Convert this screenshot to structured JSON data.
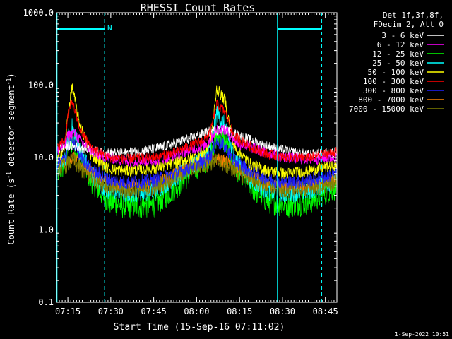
{
  "chart_data": {
    "type": "line",
    "title": "RHESSI Count Rates",
    "xlabel": "Start Time (15-Sep-16 07:11:02)",
    "ylabel_parts": [
      "Count Rate (s",
      "-1",
      " detector segment",
      "-1",
      ")"
    ],
    "yscale": "log",
    "ylim": [
      0.1,
      1000
    ],
    "xlim_minutes": [
      0,
      98
    ],
    "x_ticks": [
      {
        "label": "07:15",
        "min": 3.97
      },
      {
        "label": "07:30",
        "min": 18.97
      },
      {
        "label": "07:45",
        "min": 33.97
      },
      {
        "label": "08:00",
        "min": 48.97
      },
      {
        "label": "08:15",
        "min": 63.97
      },
      {
        "label": "08:30",
        "min": 78.97
      },
      {
        "label": "08:45",
        "min": 93.97
      }
    ],
    "y_ticks": [
      {
        "label": "0.1",
        "value": 0.1
      },
      {
        "label": "1.0",
        "value": 1
      },
      {
        "label": "10.0",
        "value": 10
      },
      {
        "label": "100.0",
        "value": 100
      },
      {
        "label": "1000.0",
        "value": 1000
      }
    ],
    "legend_header": [
      "Det 1f,3f,8f,",
      "FDecim 2, Att 0"
    ],
    "legend_position": "outside-right",
    "series": [
      {
        "name": "3 - 6 keV",
        "color": "#ffffff",
        "knots_x": [
          0,
          4,
          8,
          16,
          24,
          34,
          42,
          48,
          52,
          58,
          64,
          72,
          80,
          88,
          98
        ],
        "knots_y": [
          13,
          14.5,
          14,
          11.5,
          11.5,
          13,
          16,
          19,
          22,
          25,
          20,
          15,
          12.5,
          11,
          12
        ],
        "noise": 0.07
      },
      {
        "name": "6 - 12 keV",
        "color": "#ff00ff",
        "knots_x": [
          0,
          3,
          4,
          6,
          9,
          14,
          24,
          34,
          42,
          48,
          52,
          54,
          56,
          59,
          63,
          72,
          80,
          88,
          98
        ],
        "knots_y": [
          12,
          15,
          20,
          22,
          16,
          11,
          9,
          9,
          11,
          13,
          15,
          18,
          25,
          24,
          16,
          12,
          10,
          9.5,
          10
        ],
        "noise": 0.08
      },
      {
        "name": "12 - 25 keV",
        "color": "#00ff00",
        "knots_x": [
          0,
          3,
          4,
          5.5,
          8,
          12,
          18,
          24,
          34,
          42,
          48,
          52,
          54,
          56,
          59,
          62,
          68,
          74,
          80,
          88,
          98
        ],
        "knots_y": [
          6,
          8,
          14,
          17,
          11,
          5,
          2.5,
          2.1,
          2.2,
          4,
          7,
          9,
          12,
          20,
          16,
          8,
          4,
          2.5,
          2.2,
          2.4,
          4
        ],
        "noise": 0.18
      },
      {
        "name": "25 - 50 keV",
        "color": "#00ffff",
        "knots_x": [
          0,
          3,
          4,
          5.5,
          8,
          12,
          18,
          24,
          34,
          42,
          48,
          52,
          54,
          56,
          59,
          62,
          68,
          74,
          80,
          88,
          98
        ],
        "knots_y": [
          7,
          9,
          18,
          26,
          13,
          6,
          3.5,
          3.2,
          3.5,
          5.5,
          8,
          10,
          14,
          42,
          26,
          10,
          5,
          3.5,
          3.2,
          3.5,
          5
        ],
        "noise": 0.14
      },
      {
        "name": "50 - 100 keV",
        "color": "#ffff00",
        "knots_x": [
          0,
          3,
          4,
          5.5,
          8,
          12,
          18,
          24,
          34,
          42,
          48,
          52,
          54,
          56,
          59,
          62,
          68,
          74,
          80,
          88,
          98
        ],
        "knots_y": [
          9,
          14,
          40,
          95,
          30,
          11,
          7,
          6.5,
          7,
          8.5,
          10,
          12,
          18,
          90,
          60,
          14,
          8,
          6.5,
          6,
          6.5,
          8
        ],
        "noise": 0.08
      },
      {
        "name": "100 - 300 keV",
        "color": "#ff0000",
        "knots_x": [
          0,
          3,
          4,
          5.5,
          8,
          12,
          18,
          24,
          34,
          42,
          48,
          52,
          54,
          56,
          59,
          62,
          68,
          74,
          80,
          88,
          98
        ],
        "knots_y": [
          13,
          18,
          40,
          60,
          25,
          14,
          10,
          9.5,
          10,
          12,
          15,
          18,
          24,
          55,
          42,
          20,
          14,
          11,
          10,
          10,
          12
        ],
        "noise": 0.07
      },
      {
        "name": "300 - 800 keV",
        "color": "#2020ff",
        "knots_x": [
          0,
          3,
          4,
          5.5,
          8,
          12,
          18,
          24,
          34,
          42,
          48,
          52,
          54,
          56,
          59,
          62,
          68,
          74,
          80,
          88,
          98
        ],
        "knots_y": [
          8,
          10,
          14,
          17,
          11,
          7,
          5,
          4.5,
          4.8,
          6,
          8,
          9,
          11,
          17,
          14,
          9,
          6.5,
          5,
          4.5,
          4.8,
          6
        ],
        "noise": 0.1
      },
      {
        "name": "800 - 7000 keV",
        "color": "#ff8000",
        "knots_x": [
          0,
          4,
          6,
          10,
          18,
          24,
          34,
          42,
          48,
          52,
          56,
          60,
          66,
          74,
          80,
          88,
          98
        ],
        "knots_y": [
          8,
          9,
          10,
          7,
          4.5,
          4,
          4.2,
          6,
          8,
          9,
          9.5,
          8.5,
          6,
          4.2,
          3.8,
          4,
          5
        ],
        "noise": 0.09
      },
      {
        "name": "7000 - 15000 keV",
        "color": "#808000",
        "knots_x": [
          0,
          4,
          6,
          10,
          18,
          24,
          34,
          42,
          48,
          52,
          56,
          60,
          66,
          74,
          80,
          88,
          98
        ],
        "knots_y": [
          7,
          8,
          9,
          6,
          4,
          3.5,
          3.8,
          5.5,
          7,
          8,
          9,
          7.5,
          5.5,
          4,
          3.5,
          3.8,
          4.5
        ],
        "noise": 0.12
      }
    ],
    "annotations": {
      "night_label": "N",
      "vertical_lines_min": [
        0.2,
        16.8,
        77.2,
        92.7
      ],
      "top_bars_min": [
        [
          0.2,
          16.8
        ],
        [
          77.2,
          92.7
        ]
      ]
    }
  },
  "timestamp": "1-Sep-2022 10:51"
}
